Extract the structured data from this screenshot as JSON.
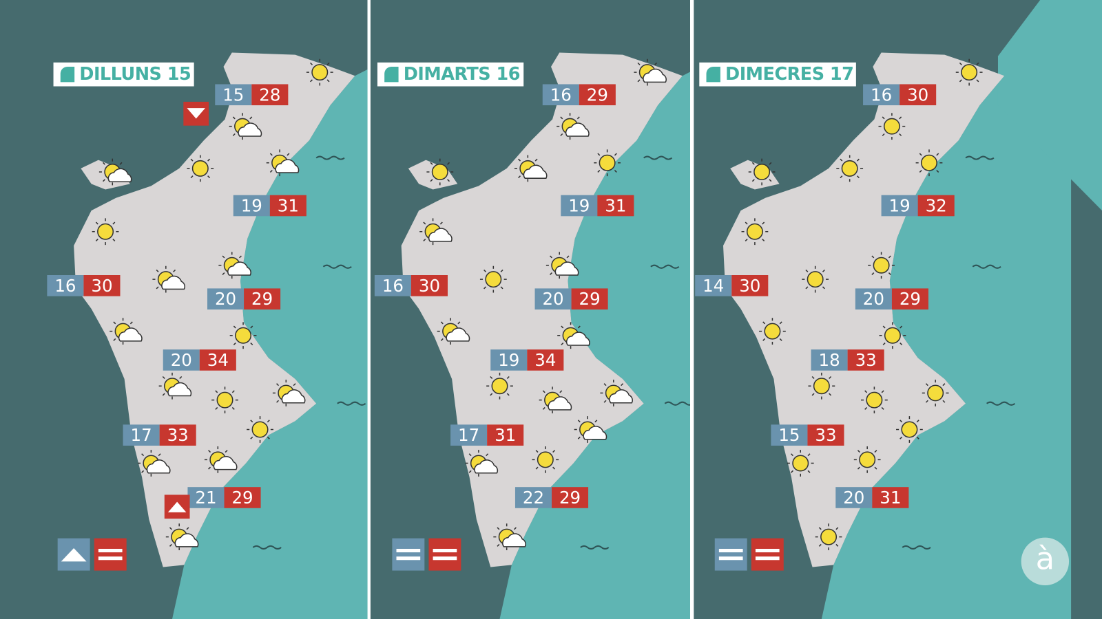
{
  "panels": [
    {
      "day": "DILLUNS 15",
      "temps": [
        {
          "min": 15,
          "max": 28
        },
        {
          "min": 19,
          "max": 31
        },
        {
          "min": 16,
          "max": 30
        },
        {
          "min": 20,
          "max": 29
        },
        {
          "min": 20,
          "max": 34
        },
        {
          "min": 17,
          "max": 33
        },
        {
          "min": 21,
          "max": 29
        }
      ]
    },
    {
      "day": "DIMARTS 16",
      "temps": [
        {
          "min": 16,
          "max": 29
        },
        {
          "min": 19,
          "max": 31
        },
        {
          "min": 16,
          "max": 30
        },
        {
          "min": 20,
          "max": 29
        },
        {
          "min": 19,
          "max": 34
        },
        {
          "min": 17,
          "max": 31
        },
        {
          "min": 22,
          "max": 29
        }
      ]
    },
    {
      "day": "DIMECRES 17",
      "temps": [
        {
          "min": 16,
          "max": 30
        },
        {
          "min": 19,
          "max": 32
        },
        {
          "min": 14,
          "max": 30
        },
        {
          "min": 20,
          "max": 29
        },
        {
          "min": 18,
          "max": 33
        },
        {
          "min": 15,
          "max": 33
        },
        {
          "min": 20,
          "max": 31
        }
      ]
    }
  ],
  "logo": "à"
}
